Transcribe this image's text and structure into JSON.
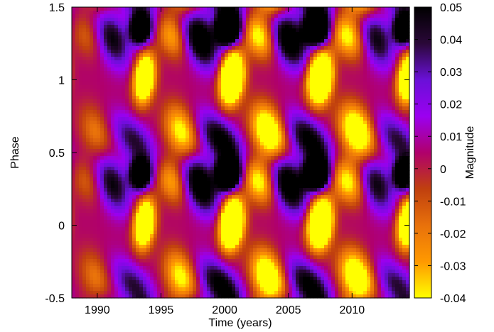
{
  "chart_data": {
    "type": "heatmap",
    "title": "",
    "xlabel": "Time (years)",
    "ylabel": "Phase",
    "colorbar_label": "Magnitude",
    "xlim": [
      1988,
      2014.5
    ],
    "ylim": [
      -0.5,
      1.5
    ],
    "x_ticks": [
      1990,
      1995,
      2000,
      2005,
      2010
    ],
    "y_ticks": [
      -0.5,
      0,
      0.5,
      1,
      1.5
    ],
    "x_tick_labels": [
      "1990",
      "1995",
      "2000",
      "2005",
      "2010"
    ],
    "y_tick_labels": [
      "-0.5",
      "0",
      "0.5",
      "1",
      "1.5"
    ],
    "color_range": [
      -0.04,
      0.05
    ],
    "colorbar_ticks": [
      0.05,
      0.04,
      0.03,
      0.02,
      0.01,
      0,
      -0.01,
      -0.02,
      -0.03,
      -0.04
    ],
    "colorbar_tick_labels": [
      "0.05",
      "0.04",
      "0.03",
      "0.02",
      "0.01",
      "0",
      "-0.01",
      "-0.02",
      "-0.03",
      "-0.04"
    ],
    "colormap": [
      "#ffff00",
      "#ff9900",
      "#e8710b",
      "#c0400e",
      "#b0006c",
      "#9b00f0",
      "#6a10d8",
      "#2a0838",
      "#000000"
    ],
    "period_years": 6.7,
    "field_description": "Repeating pattern: dark minima near phase 0.35 and 1.35 at years ~1993.4, ~2000.1, ~2007.3, ~2014.2; bright yellow maxima near phase 0 and 1 shifted later by ~0.3 years; values repeat with phase period 1.",
    "cells": {
      "x": [
        1988.0,
        1989.0,
        1990.0,
        1991.0,
        1992.0,
        1993.0,
        1993.4,
        1994.0,
        1995.0,
        1996.0,
        1997.0,
        1998.0,
        1999.0,
        2000.1,
        2001.0,
        2002.0,
        2003.0,
        2004.0,
        2005.0,
        2006.0,
        2007.3,
        2008.0,
        2009.0,
        2010.0,
        2011.0,
        2012.0,
        2013.0,
        2014.2
      ],
      "y": [
        -0.5,
        -0.4,
        -0.3,
        -0.2,
        -0.1,
        0.0,
        0.1,
        0.2,
        0.3,
        0.35,
        0.4,
        0.5,
        0.6,
        0.7,
        0.8,
        0.9,
        1.0,
        1.1,
        1.2,
        1.3,
        1.35,
        1.4,
        1.5
      ]
    }
  }
}
